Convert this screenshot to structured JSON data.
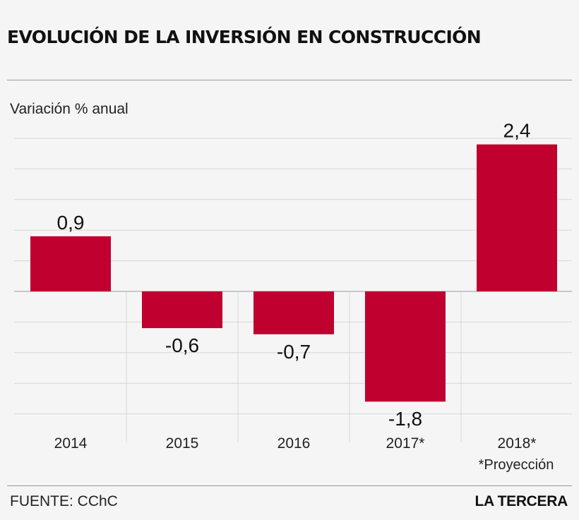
{
  "title": "EVOLUCIÓN DE LA INVERSIÓN EN CONSTRUCCIÓN",
  "source": "FUENTE: CChC",
  "brand": "LA TERCERA",
  "note": "*Proyección",
  "colors": {
    "bar": "#c0002f",
    "grid": "#d6d6d6",
    "axis": "#9a9a9a"
  },
  "chart_data": {
    "type": "bar",
    "ylabel": "Variación % anual",
    "categories": [
      "2014",
      "2015",
      "2016",
      "2017*",
      "2018*"
    ],
    "values": [
      0.9,
      -0.6,
      -0.7,
      -1.8,
      2.4
    ],
    "data_labels": [
      "0,9",
      "-0,6",
      "-0,7",
      "-1,8",
      "2,4"
    ],
    "ylim": [
      -2,
      2.5
    ],
    "grid": true,
    "gridlines": [
      -2,
      -1.5,
      -1,
      -0.5,
      0,
      0.5,
      1,
      1.5,
      2,
      2.5
    ]
  }
}
